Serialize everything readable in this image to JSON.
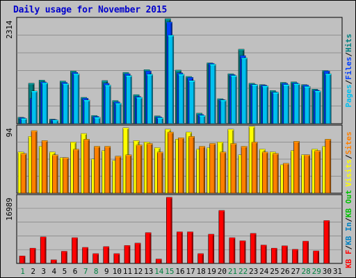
{
  "title": "Daily usage for November 2015",
  "colors": {
    "background": "#c0c0c0",
    "plot_background": "#c0c0c0",
    "pages": "#00c0f0",
    "files": "#0040ff",
    "hits": "#008080",
    "visits": "#ffff00",
    "sites": "#ff8000",
    "kb_in": "#0080c0",
    "kb_out": "#00c000",
    "kb_f": "#ff0000",
    "title": "#0000cc",
    "day_normal": "#000000",
    "day_weekend": "#008040"
  },
  "chart_data": [
    {
      "type": "bar",
      "ymax_label": "2314",
      "ylim": [
        0,
        2314
      ],
      "legend": [
        {
          "label": "Pages",
          "color": "#00c0f0"
        },
        {
          "label": "Files",
          "color": "#0040ff"
        },
        {
          "label": "Hits",
          "color": "#008080"
        }
      ],
      "series": [
        {
          "name": "Hits",
          "values": [
            140,
            890,
            960,
            100,
            940,
            1160,
            580,
            180,
            950,
            510,
            1130,
            640,
            1190,
            170,
            2314,
            1180,
            1040,
            230,
            1340,
            550,
            1100,
            1640,
            890,
            860,
            730,
            910,
            920,
            860,
            760,
            1170
          ]
        },
        {
          "name": "Files",
          "values": [
            130,
            560,
            920,
            90,
            910,
            1130,
            560,
            160,
            890,
            480,
            1100,
            600,
            1160,
            150,
            2240,
            1120,
            1020,
            200,
            1330,
            530,
            1080,
            1500,
            870,
            850,
            700,
            890,
            900,
            850,
            740,
            1160
          ]
        },
        {
          "name": "Pages",
          "values": [
            115,
            720,
            900,
            80,
            880,
            1100,
            520,
            140,
            850,
            450,
            1060,
            580,
            1090,
            130,
            1950,
            1090,
            950,
            180,
            1310,
            520,
            1060,
            1450,
            860,
            830,
            690,
            860,
            880,
            820,
            720,
            1100
          ]
        }
      ]
    },
    {
      "type": "bar",
      "ymax_label": "94",
      "ylim": [
        0,
        94
      ],
      "legend": [
        {
          "label": "Visits",
          "color": "#ffff00"
        },
        {
          "label": "Sites",
          "color": "#ff8000"
        }
      ],
      "series": [
        {
          "name": "Visits",
          "values": [
            58,
            80,
            66,
            58,
            50,
            72,
            84,
            48,
            60,
            46,
            92,
            74,
            72,
            64,
            90,
            76,
            86,
            62,
            64,
            72,
            90,
            54,
            94,
            62,
            58,
            40,
            60,
            54,
            62,
            66
          ]
        },
        {
          "name": "Sites",
          "values": [
            56,
            88,
            74,
            54,
            50,
            62,
            76,
            66,
            66,
            52,
            54,
            68,
            70,
            58,
            86,
            78,
            80,
            66,
            70,
            58,
            70,
            66,
            72,
            58,
            56,
            42,
            73,
            54,
            60,
            76
          ]
        }
      ]
    },
    {
      "type": "bar",
      "ymax_label": "16989",
      "ylim": [
        0,
        16989
      ],
      "legend": [
        {
          "label": "KB F",
          "color": "#ff0000"
        },
        {
          "label": "KB In",
          "color": "#0080c0"
        },
        {
          "label": "KB Out",
          "color": "#00c000"
        }
      ],
      "series": [
        {
          "name": "KB F",
          "values": [
            1900,
            3900,
            6800,
            900,
            3100,
            6600,
            4100,
            2500,
            4300,
            2500,
            4600,
            5200,
            7900,
            1100,
            16989,
            8100,
            8100,
            2500,
            7500,
            13600,
            6600,
            5800,
            7700,
            4700,
            3900,
            4500,
            3600,
            5700,
            3200,
            11000
          ]
        }
      ]
    }
  ],
  "x_axis": {
    "days": [
      "1",
      "2",
      "3",
      "4",
      "5",
      "6",
      "7",
      "8",
      "9",
      "10",
      "11",
      "12",
      "13",
      "14",
      "15",
      "16",
      "17",
      "18",
      "19",
      "20",
      "21",
      "22",
      "23",
      "24",
      "25",
      "26",
      "27",
      "28",
      "29",
      "30",
      "31"
    ],
    "weekend_days": [
      "1",
      "7",
      "8",
      "14",
      "15",
      "21",
      "22",
      "28",
      "29"
    ]
  }
}
